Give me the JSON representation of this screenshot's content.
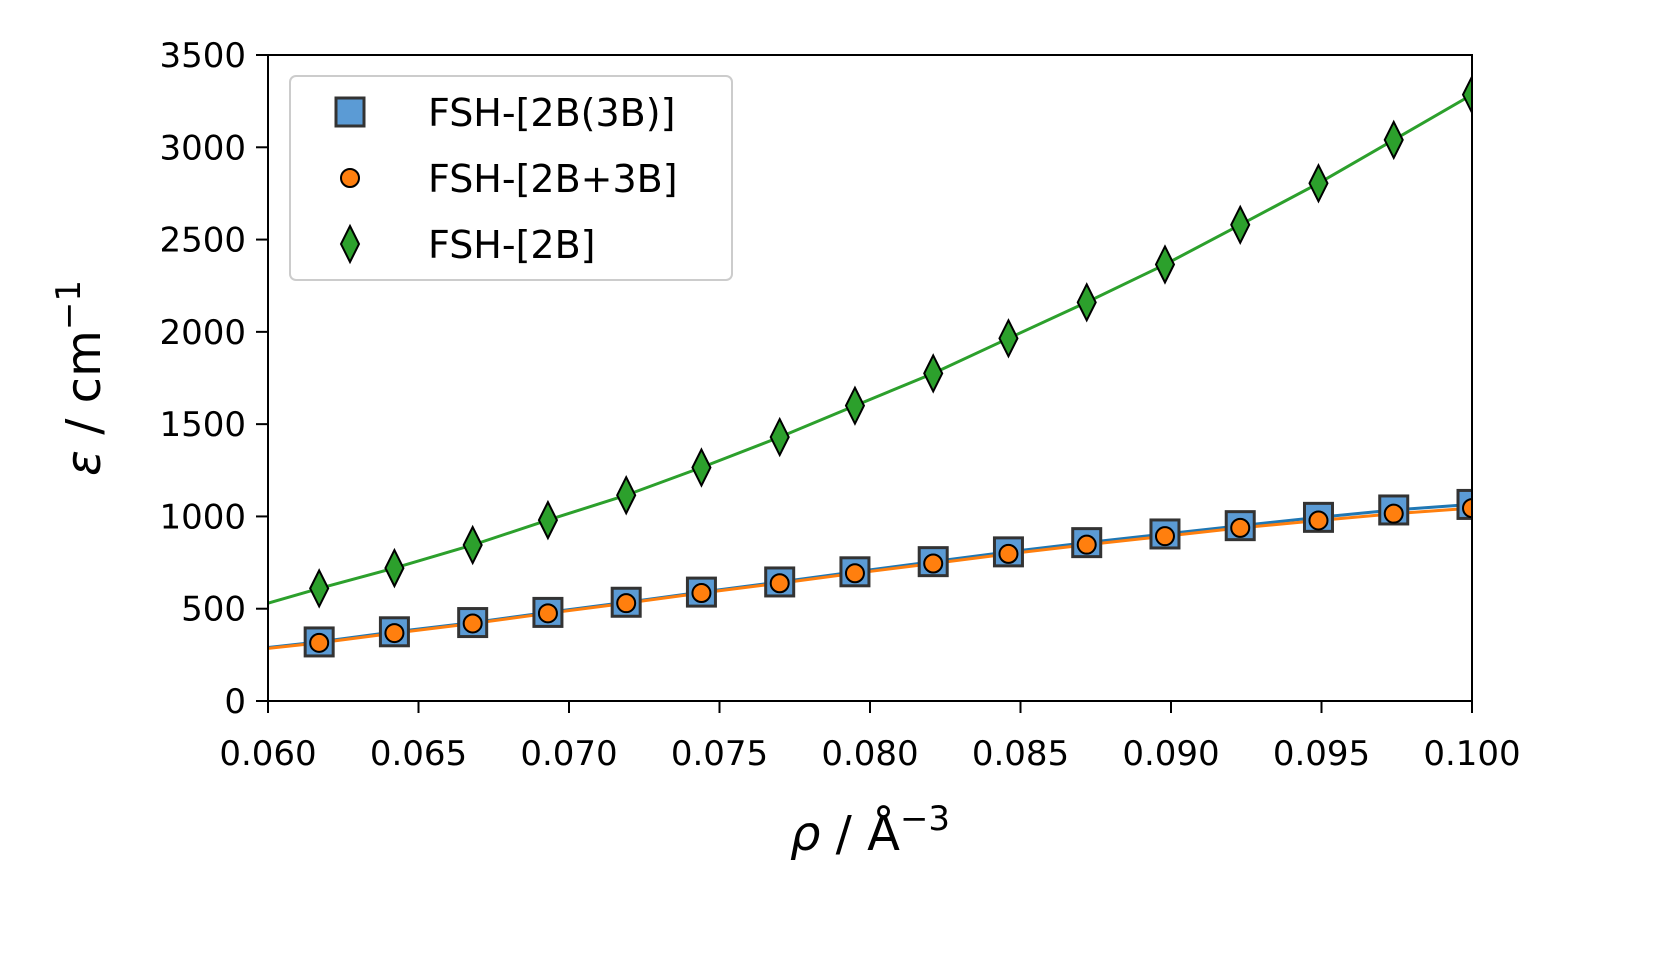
{
  "chart_data": {
    "type": "scatter",
    "xlabel": {
      "symbol": "ρ",
      "text": " / Å",
      "sup": "−3"
    },
    "ylabel": {
      "symbol": "ε",
      "text": " / cm",
      "sup": "−1"
    },
    "xlim": [
      0.06,
      0.1
    ],
    "ylim": [
      0,
      3500
    ],
    "xticks": [
      "0.060",
      "0.065",
      "0.070",
      "0.075",
      "0.080",
      "0.085",
      "0.090",
      "0.095",
      "0.100"
    ],
    "yticks": [
      "0",
      "500",
      "1000",
      "1500",
      "2000",
      "2500",
      "3000",
      "3500"
    ],
    "grid": false,
    "legend_position": "top-left",
    "series": [
      {
        "name": "FSH-[2B(3B)]",
        "marker": "square",
        "color": "#5b9bd5",
        "line_color": "#1f77b4",
        "x": [
          0.0617,
          0.0642,
          0.0668,
          0.0693,
          0.0719,
          0.0744,
          0.077,
          0.0795,
          0.0821,
          0.0846,
          0.0872,
          0.0898,
          0.0923,
          0.0949,
          0.0974,
          0.1
        ],
        "y": [
          320,
          375,
          425,
          480,
          535,
          590,
          645,
          700,
          755,
          808,
          858,
          905,
          950,
          995,
          1035,
          1065
        ],
        "curve_x": [
          0.06,
          0.1
        ],
        "curve_y": [
          290,
          1065
        ]
      },
      {
        "name": "FSH-[2B+3B]",
        "marker": "circle",
        "color": "#ff7f0e",
        "line_color": "#ff7f0e",
        "x": [
          0.0617,
          0.0642,
          0.0668,
          0.0693,
          0.0719,
          0.0744,
          0.077,
          0.0795,
          0.0821,
          0.0846,
          0.0872,
          0.0898,
          0.0923,
          0.0949,
          0.0974,
          0.1
        ],
        "y": [
          315,
          368,
          420,
          475,
          530,
          585,
          638,
          692,
          745,
          797,
          847,
          893,
          938,
          978,
          1015,
          1045
        ],
        "curve_x": [
          0.06,
          0.1
        ],
        "curve_y": [
          285,
          1045
        ]
      },
      {
        "name": "FSH-[2B]",
        "marker": "diamond",
        "color": "#2ca02c",
        "line_color": "#2ca02c",
        "x": [
          0.0617,
          0.0642,
          0.0668,
          0.0693,
          0.0719,
          0.0744,
          0.077,
          0.0795,
          0.0821,
          0.0846,
          0.0872,
          0.0898,
          0.0923,
          0.0949,
          0.0974,
          0.1
        ],
        "y": [
          610,
          720,
          845,
          980,
          1115,
          1265,
          1430,
          1600,
          1775,
          1965,
          2160,
          2365,
          2580,
          2805,
          3040,
          3285
        ],
        "curve_x": [
          0.06,
          0.1
        ],
        "curve_y": [
          530,
          3285
        ]
      }
    ]
  }
}
